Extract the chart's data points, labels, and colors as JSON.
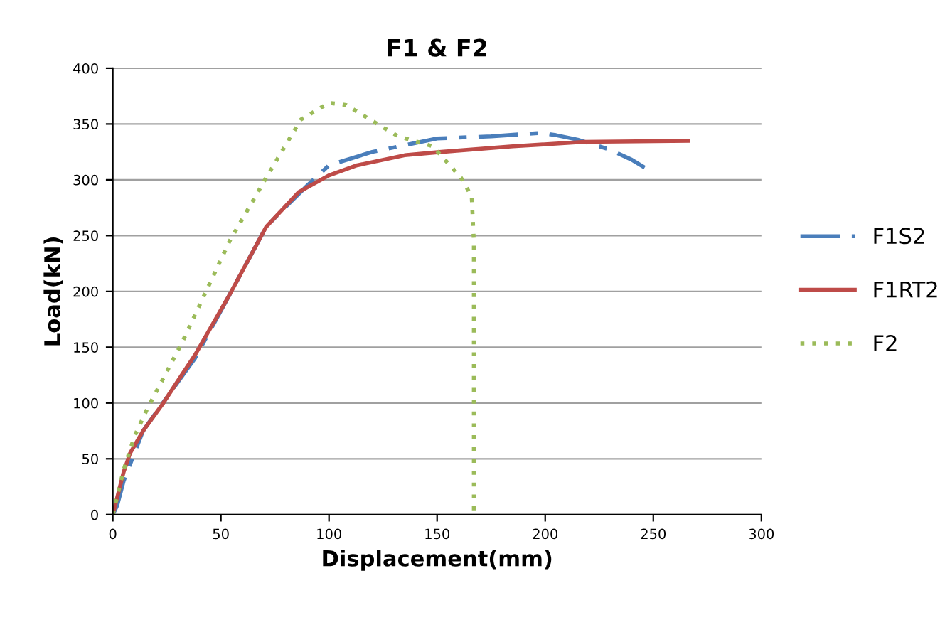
{
  "chart_data": {
    "type": "line",
    "title": "F1 & F2",
    "xlabel": "Displacement(mm)",
    "ylabel": "Load(kN)",
    "xlim": [
      0,
      300
    ],
    "ylim": [
      0,
      400
    ],
    "xticks": [
      0,
      50,
      100,
      150,
      200,
      250,
      300
    ],
    "yticks": [
      0,
      50,
      100,
      150,
      200,
      250,
      300,
      350,
      400
    ],
    "grid": "y",
    "legend": "right",
    "series": [
      {
        "name": "F1S2",
        "color": "#4a7ebb",
        "line_style": "dashdot",
        "x": [
          0,
          2,
          5,
          10,
          14,
          25,
          38,
          54,
          71,
          78,
          90,
          100,
          120,
          150,
          175,
          198,
          205,
          215,
          230,
          240,
          246
        ],
        "values": [
          0,
          8,
          30,
          55,
          75,
          105,
          140,
          197,
          258,
          272,
          295,
          313,
          325,
          337,
          339,
          342,
          340,
          336,
          327,
          318,
          311
        ]
      },
      {
        "name": "F1RT2",
        "color": "#be4b48",
        "line_style": "solid",
        "x": [
          0,
          2,
          5,
          8,
          14,
          23,
          38,
          54,
          71,
          86,
          100,
          113,
          135,
          152,
          185,
          218,
          266
        ],
        "values": [
          0,
          15,
          38,
          55,
          75,
          99,
          143,
          197,
          258,
          289,
          304,
          313,
          322,
          325,
          330,
          334,
          335
        ]
      },
      {
        "name": "F2",
        "color": "#9bbb59",
        "line_style": "dotted",
        "x": [
          0,
          5,
          10,
          16,
          32,
          54,
          71,
          87,
          100,
          108,
          119,
          132,
          148,
          161,
          166,
          167,
          167
        ],
        "values": [
          0,
          40,
          70,
          95,
          154,
          245,
          302,
          354,
          369,
          367,
          354,
          339,
          330,
          302,
          285,
          245,
          0
        ]
      }
    ]
  }
}
